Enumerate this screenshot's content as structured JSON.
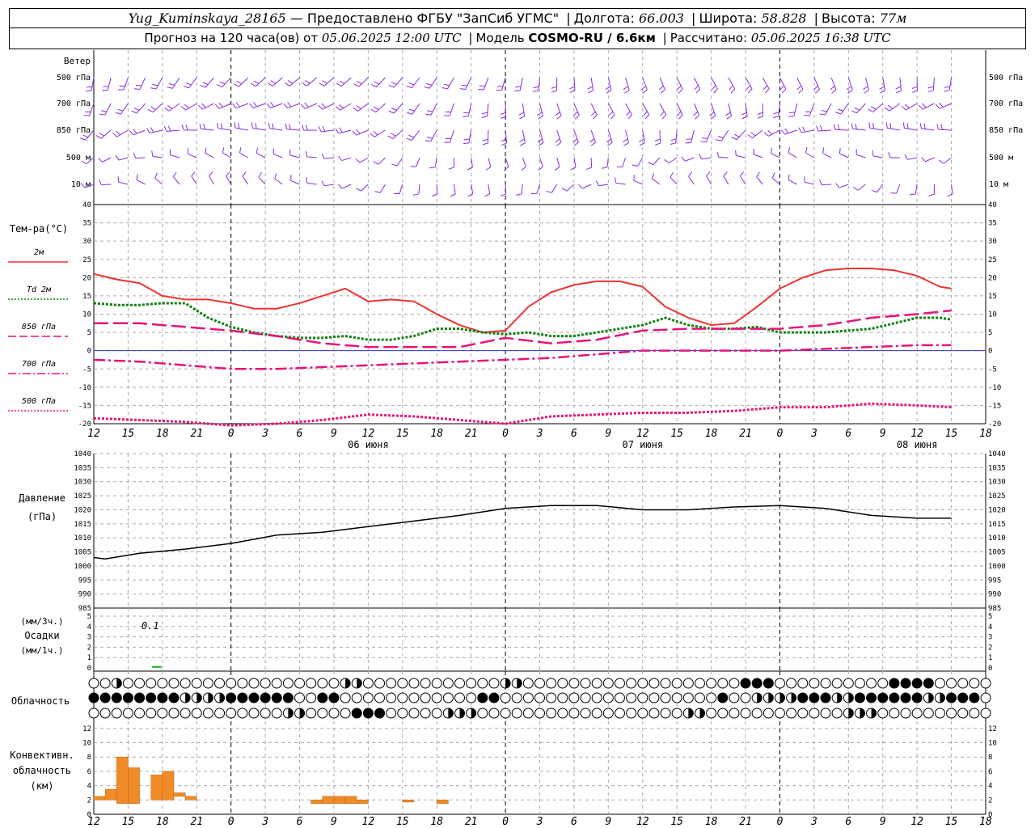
{
  "header": {
    "station": "Yug_Kuminskaya_28165",
    "provider": "— Предоставлено ФГБУ \"ЗапСиб УГМС\"",
    "lon_label": "Долгота:",
    "lon": "66.003",
    "lat_label": "Широта:",
    "lat": "58.828",
    "alt_label": "Высота:",
    "alt": "77м",
    "forecast_label": "Прогноз на 120 часа(ов) от",
    "forecast_from": "05.06.2025 12:00 UTC",
    "model_label": "Модель",
    "model": "COSMO-RU / 6.6км",
    "calc_label": "Рассчитано:",
    "calc": "05.06.2025 16:38 UTC"
  },
  "time_axis": {
    "hour_labels": [
      "12",
      "15",
      "18",
      "21",
      "0",
      "3",
      "6",
      "9",
      "12",
      "15",
      "18",
      "21",
      "0",
      "3",
      "6",
      "9",
      "12",
      "15",
      "18",
      "21",
      "0",
      "3",
      "6",
      "9",
      "12",
      "15",
      "18"
    ],
    "day_labels": [
      {
        "text": "06 июня",
        "at_hour": 24
      },
      {
        "text": "07 июня",
        "at_hour": 48
      },
      {
        "text": "08 июня",
        "at_hour": 72
      }
    ],
    "day_boundaries_hours": [
      12,
      36,
      60
    ]
  },
  "wind_panel": {
    "title": "Ветер",
    "levels": [
      "500 гПа",
      "700 гПа",
      "850 гПа",
      "500 м",
      "10 м"
    ],
    "barb_color": "#8a2be2"
  },
  "temp_panel": {
    "title": "Тем-ра(°C)",
    "ticks": [
      40,
      35,
      30,
      25,
      20,
      15,
      10,
      5,
      0,
      -5,
      -10,
      -15,
      -20
    ],
    "legend": [
      {
        "label": "2м",
        "color": "#ee3333",
        "dash": ""
      },
      {
        "label": "Td 2м",
        "color": "#108010",
        "dash": "2,2"
      },
      {
        "label": "850 гПа",
        "color": "#e6147a",
        "dash": "10,4"
      },
      {
        "label": "700 гПа",
        "color": "#e6147a",
        "dash": "10,3,2,3"
      },
      {
        "label": "500 гПа",
        "color": "#e6147a",
        "dash": "2,2"
      }
    ]
  },
  "pressure_panel": {
    "title": "Давление",
    "unit": "(гПа)",
    "ticks": [
      1040,
      1035,
      1030,
      1025,
      1020,
      1015,
      1010,
      1005,
      1000,
      995,
      990,
      985
    ]
  },
  "precip_panel": {
    "unit_top": "(мм/3ч.)",
    "title": "Осадки",
    "unit_bottom": "(мм/1ч.)",
    "ticks": [
      5,
      4,
      3,
      2,
      1,
      0
    ],
    "annotation": "0.1"
  },
  "cloud_panel": {
    "title": "Облачность"
  },
  "conv_panel": {
    "title_1": "Конвективн.",
    "title_2": "облачность",
    "unit": "(км)",
    "ticks": [
      12,
      10,
      8,
      6,
      4,
      2,
      0
    ],
    "bar_color": "#f08c28"
  },
  "chart_data": [
    {
      "type": "line",
      "name": "temperature",
      "ylabel": "Тем-ра(°C)",
      "ylim": [
        -20,
        40
      ],
      "x_unit": "hours since 05.06.2025 12:00 UTC",
      "series": [
        {
          "name": "2м",
          "x": [
            0,
            2,
            4,
            6,
            8,
            10,
            12,
            14,
            16,
            18,
            20,
            22,
            24,
            26,
            28,
            30,
            32,
            34,
            36,
            38,
            40,
            42,
            44,
            46,
            48,
            50,
            52,
            54,
            56,
            58,
            60,
            62,
            64,
            66,
            68,
            70,
            72,
            74,
            75
          ],
          "values": [
            21,
            19.5,
            18.5,
            15,
            14,
            14,
            13,
            11.5,
            11.5,
            13,
            15,
            17,
            13.5,
            14,
            13.5,
            10,
            7,
            5,
            5.5,
            12,
            16,
            18,
            19,
            19,
            17.5,
            12,
            9,
            7,
            7.5,
            12,
            17,
            20,
            22,
            22.5,
            22.5,
            22,
            20.5,
            17.5,
            17
          ]
        },
        {
          "name": "Td 2м",
          "x": [
            0,
            2,
            4,
            6,
            8,
            10,
            12,
            14,
            16,
            18,
            20,
            22,
            24,
            26,
            28,
            30,
            32,
            34,
            36,
            38,
            40,
            42,
            44,
            46,
            48,
            50,
            52,
            54,
            56,
            58,
            60,
            62,
            64,
            66,
            68,
            70,
            72,
            74,
            75
          ],
          "values": [
            13,
            12.5,
            12.5,
            13,
            13,
            9,
            6.5,
            5,
            4,
            3.5,
            3.5,
            4,
            3,
            3,
            4,
            6,
            6,
            5,
            4.5,
            5,
            4,
            4,
            5,
            6,
            7,
            9,
            7,
            6,
            6,
            6.5,
            5,
            5,
            5,
            5.5,
            6,
            7.5,
            9,
            9,
            8.5
          ]
        },
        {
          "name": "850 гПа",
          "x": [
            0,
            4,
            8,
            12,
            16,
            20,
            24,
            28,
            32,
            36,
            40,
            44,
            48,
            52,
            56,
            60,
            64,
            68,
            72,
            75
          ],
          "values": [
            7.5,
            7.5,
            6.5,
            5.5,
            4,
            2,
            1,
            1,
            1,
            3.5,
            2,
            3,
            5.5,
            6,
            6,
            6,
            7,
            9,
            10,
            11
          ]
        },
        {
          "name": "700 гПа",
          "x": [
            0,
            4,
            8,
            12,
            16,
            20,
            24,
            28,
            32,
            36,
            40,
            44,
            48,
            52,
            56,
            60,
            64,
            68,
            72,
            75
          ],
          "values": [
            -2.5,
            -3,
            -4,
            -5,
            -5,
            -4.5,
            -4,
            -3.5,
            -3,
            -2.5,
            -2,
            -1,
            0,
            0,
            0,
            0,
            0.5,
            1,
            1.5,
            1.5
          ]
        },
        {
          "name": "500 гПа",
          "x": [
            0,
            4,
            8,
            12,
            16,
            20,
            24,
            28,
            32,
            36,
            40,
            44,
            48,
            52,
            56,
            60,
            64,
            68,
            72,
            75
          ],
          "values": [
            -18.5,
            -19,
            -19.5,
            -20.5,
            -20,
            -19,
            -17.5,
            -18,
            -19,
            -20,
            -18,
            -17.5,
            -17,
            -17,
            -16.5,
            -15.5,
            -15.5,
            -14.5,
            -15,
            -15.5
          ]
        }
      ]
    },
    {
      "type": "line",
      "name": "pressure",
      "ylabel": "Давление (гПа)",
      "ylim": [
        985,
        1040
      ],
      "series": [
        {
          "name": "Давление",
          "x": [
            0,
            1,
            4,
            8,
            12,
            16,
            20,
            24,
            28,
            32,
            36,
            40,
            44,
            48,
            52,
            56,
            60,
            64,
            68,
            72,
            75
          ],
          "values": [
            1003,
            1002.5,
            1004.5,
            1006,
            1008,
            1011,
            1012,
            1014,
            1016,
            1018,
            1020.5,
            1021.5,
            1021.5,
            1020,
            1020,
            1021,
            1021.5,
            1020.5,
            1018,
            1017,
            1017
          ]
        }
      ]
    },
    {
      "type": "bar",
      "name": "precipitation",
      "ylim": [
        0,
        5
      ],
      "x": [
        5.5
      ],
      "values": [
        0.1
      ]
    },
    {
      "type": "bar",
      "name": "convective_cloud",
      "ylabel": "Конвективн. облачность (км)",
      "ylim": [
        0,
        13
      ],
      "bars": [
        {
          "x0": 0,
          "x1": 1,
          "bottom": 2,
          "top": 2.5
        },
        {
          "x0": 1,
          "x1": 2,
          "bottom": 2,
          "top": 3.5
        },
        {
          "x0": 2,
          "x1": 3,
          "bottom": 1.5,
          "top": 8
        },
        {
          "x0": 3,
          "x1": 4,
          "bottom": 1.5,
          "top": 6.5
        },
        {
          "x0": 5,
          "x1": 6,
          "bottom": 2,
          "top": 5.5
        },
        {
          "x0": 6,
          "x1": 7,
          "bottom": 2,
          "top": 6
        },
        {
          "x0": 7,
          "x1": 8,
          "bottom": 2.5,
          "top": 3
        },
        {
          "x0": 8,
          "x1": 9,
          "bottom": 2,
          "top": 2.5
        },
        {
          "x0": 19,
          "x1": 20,
          "bottom": 1.5,
          "top": 2
        },
        {
          "x0": 20,
          "x1": 21,
          "bottom": 1.5,
          "top": 2.5
        },
        {
          "x0": 21,
          "x1": 22,
          "bottom": 1.5,
          "top": 2.5
        },
        {
          "x0": 22,
          "x1": 23,
          "bottom": 1.5,
          "top": 2.5
        },
        {
          "x0": 23,
          "x1": 24,
          "bottom": 1.5,
          "top": 2
        },
        {
          "x0": 27,
          "x1": 28,
          "bottom": 1.7,
          "top": 2
        },
        {
          "x0": 30,
          "x1": 31,
          "bottom": 1.5,
          "top": 2
        }
      ]
    }
  ]
}
